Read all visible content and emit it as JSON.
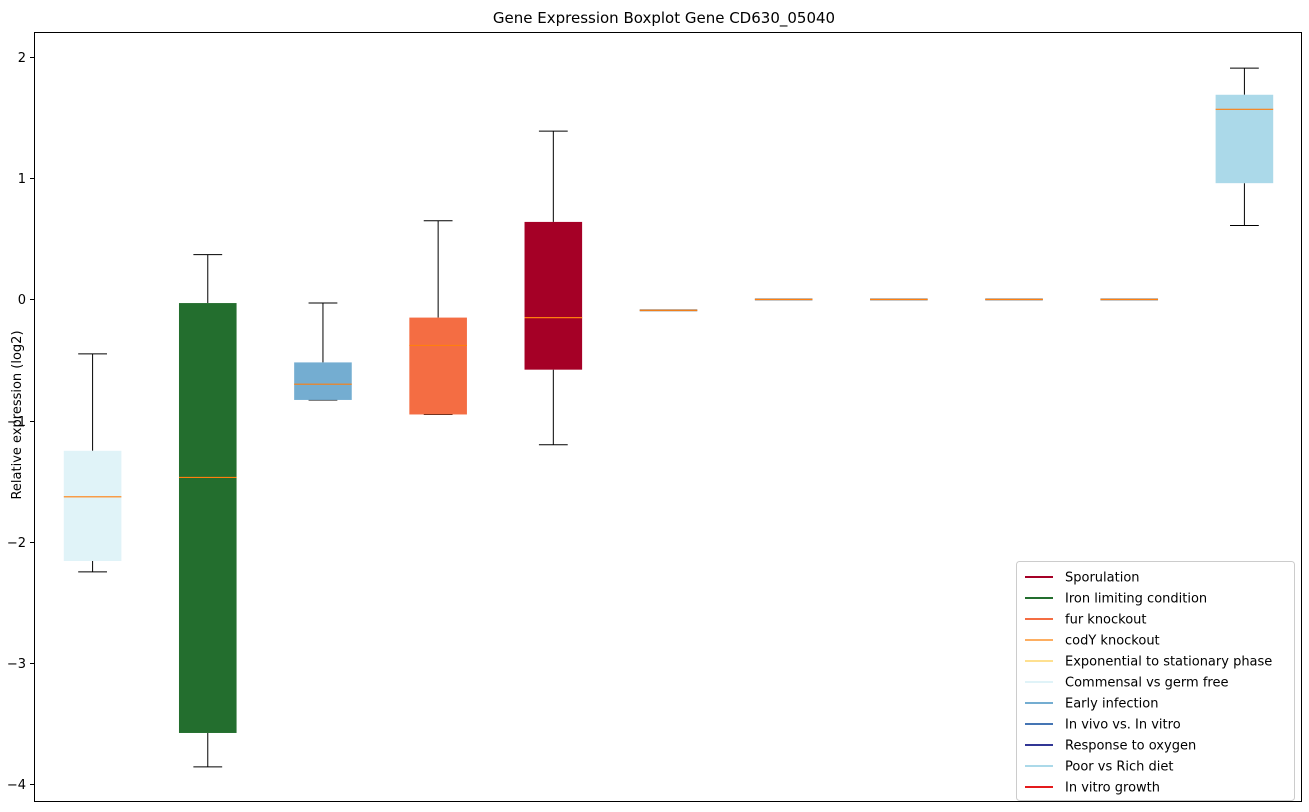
{
  "chart_data": {
    "type": "box",
    "title": "Gene Expression Boxplot Gene CD630_05040",
    "xlabel": "",
    "ylabel": "Relative expression (log2)",
    "ylim": [
      -4.15,
      2.2
    ],
    "yticks": [
      -4,
      -3,
      -2,
      -1,
      0,
      1,
      2
    ],
    "ytick_labels": [
      "−4",
      "−3",
      "−2",
      "−1",
      "0",
      "1",
      "2"
    ],
    "grid": false,
    "legend_position": "bottom-right",
    "median_color": "#ff7f0e",
    "boxes": [
      {
        "position": 1,
        "whisker_low": -2.25,
        "q1": -2.16,
        "median": -1.63,
        "q3": -1.25,
        "whisker_high": -0.45,
        "color": "#e0f3f8"
      },
      {
        "position": 2,
        "whisker_low": -3.86,
        "q1": -3.58,
        "median": -1.47,
        "q3": -0.03,
        "whisker_high": 0.37,
        "color": "#236e2e"
      },
      {
        "position": 3,
        "whisker_low": -0.83,
        "q1": -0.83,
        "median": -0.7,
        "q3": -0.52,
        "whisker_high": -0.03,
        "color": "#74add1"
      },
      {
        "position": 4,
        "whisker_low": -0.95,
        "q1": -0.95,
        "median": -0.38,
        "q3": -0.15,
        "whisker_high": 0.65,
        "color": "#f46d43"
      },
      {
        "position": 5,
        "whisker_low": -1.2,
        "q1": -0.58,
        "median": -0.15,
        "q3": 0.64,
        "whisker_high": 1.39,
        "color": "#a50026"
      },
      {
        "position": 6,
        "whisker_low": -0.09,
        "q1": -0.09,
        "median": -0.09,
        "q3": -0.09,
        "whisker_high": -0.09,
        "color": "#808080"
      },
      {
        "position": 7,
        "whisker_low": 0.0,
        "q1": 0.0,
        "median": 0.0,
        "q3": 0.0,
        "whisker_high": 0.0,
        "color": "#808080"
      },
      {
        "position": 8,
        "whisker_low": 0.0,
        "q1": 0.0,
        "median": 0.0,
        "q3": 0.0,
        "whisker_high": 0.0,
        "color": "#808080"
      },
      {
        "position": 9,
        "whisker_low": 0.0,
        "q1": 0.0,
        "median": 0.0,
        "q3": 0.0,
        "whisker_high": 0.0,
        "color": "#808080"
      },
      {
        "position": 10,
        "whisker_low": 0.0,
        "q1": 0.0,
        "median": 0.0,
        "q3": 0.0,
        "whisker_high": 0.0,
        "color": "#808080"
      },
      {
        "position": 11,
        "whisker_low": 0.61,
        "q1": 0.96,
        "median": 1.57,
        "q3": 1.69,
        "whisker_high": 1.91,
        "color": "#abd9e9"
      }
    ],
    "legend": [
      {
        "label": "Sporulation",
        "color": "#a50026"
      },
      {
        "label": "Iron limiting condition",
        "color": "#236e2e"
      },
      {
        "label": "fur knockout",
        "color": "#f46d43"
      },
      {
        "label": "codY knockout",
        "color": "#fdae61"
      },
      {
        "label": "Exponential to stationary phase",
        "color": "#fee090"
      },
      {
        "label": "Commensal vs germ free",
        "color": "#e0f3f8"
      },
      {
        "label": "Early infection",
        "color": "#74add1"
      },
      {
        "label": "In vivo vs. In vitro",
        "color": "#4575b4"
      },
      {
        "label": "Response to oxygen",
        "color": "#313695"
      },
      {
        "label": "Poor vs Rich diet",
        "color": "#abd9e9"
      },
      {
        "label": "In vitro growth",
        "color": "#e41a1c"
      }
    ]
  }
}
